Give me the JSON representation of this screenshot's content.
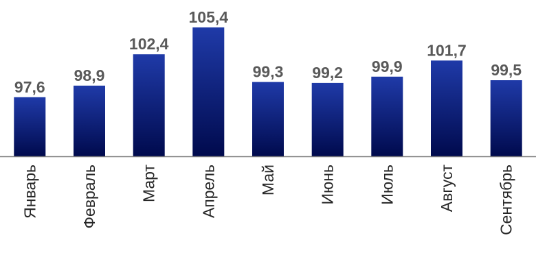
{
  "chart_data": {
    "type": "bar",
    "title": "",
    "xlabel": "",
    "ylabel": "",
    "categories": [
      "Январь",
      "Февраль",
      "Март",
      "Апрель",
      "Май",
      "Июнь",
      "Июль",
      "Август",
      "Сентябрь"
    ],
    "values": [
      97.6,
      98.9,
      102.4,
      105.4,
      99.3,
      99.2,
      99.9,
      101.7,
      99.5
    ],
    "value_labels": [
      "97,6",
      "98,9",
      "102,4",
      "105,4",
      "99,3",
      "99,2",
      "99,9",
      "101,7",
      "99,5"
    ],
    "ylim": [
      91.0,
      105.4
    ],
    "grid": false,
    "legend": "none",
    "bar_color_top": "#1f3aa8",
    "bar_color_bottom": "#000a4d",
    "axis_color": "#7f7f7f",
    "label_color": "#595959"
  }
}
